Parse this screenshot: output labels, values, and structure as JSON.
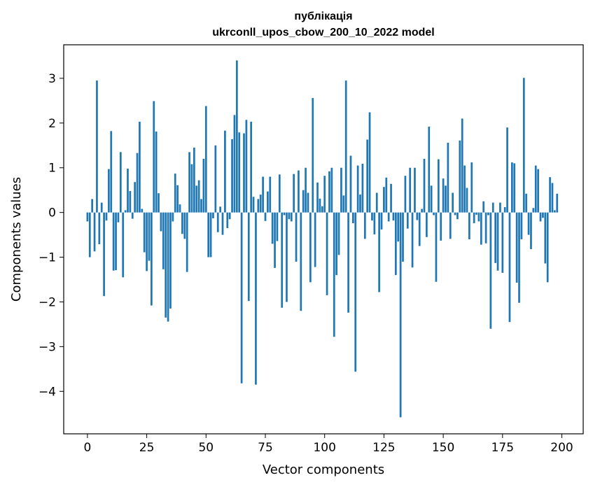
{
  "chart_data": {
    "type": "bar",
    "title_lines": [
      "публікація",
      "ukrconll_upos_cbow_200_10_2022 model"
    ],
    "xlabel": "Vector components",
    "ylabel": "Components values",
    "xlim": [
      -10,
      209
    ],
    "ylim": [
      -4.95,
      3.75
    ],
    "xticks": [
      0,
      25,
      50,
      75,
      100,
      125,
      150,
      175,
      200
    ],
    "xtick_labels": [
      "0",
      "25",
      "50",
      "75",
      "100",
      "125",
      "150",
      "175",
      "200"
    ],
    "yticks": [
      -4,
      -3,
      -2,
      -1,
      0,
      1,
      2,
      3
    ],
    "ytick_labels": [
      "−4",
      "−3",
      "−2",
      "−1",
      "0",
      "1",
      "2",
      "3"
    ],
    "grid": false,
    "bar_color": "#1f77b4",
    "values": [
      -0.2,
      -1.0,
      0.3,
      -0.87,
      2.95,
      -0.71,
      0.22,
      -1.87,
      -0.18,
      0.97,
      1.82,
      -1.3,
      -1.29,
      -0.22,
      1.35,
      -1.45,
      0.05,
      0.98,
      0.48,
      -0.14,
      0.68,
      1.33,
      2.03,
      0.08,
      -0.89,
      -1.31,
      -1.08,
      -2.08,
      2.49,
      1.81,
      0.43,
      -0.42,
      -1.27,
      -2.35,
      -2.44,
      -2.15,
      -0.2,
      0.87,
      0.61,
      0.18,
      -0.48,
      -0.59,
      -1.33,
      1.35,
      1.08,
      1.45,
      0.6,
      0.72,
      0.3,
      1.2,
      2.38,
      -1.0,
      -1.0,
      -0.13,
      1.5,
      -0.44,
      0.13,
      -0.5,
      1.83,
      -0.35,
      -0.15,
      1.64,
      2.18,
      3.4,
      1.79,
      -3.82,
      1.77,
      2.07,
      -1.98,
      2.03,
      0.35,
      -3.85,
      0.3,
      0.4,
      0.8,
      -0.19,
      0.47,
      0.8,
      -0.7,
      -1.24,
      -0.64,
      0.85,
      -2.13,
      -0.06,
      -2.0,
      -0.15,
      -0.2,
      0.86,
      -1.1,
      0.94,
      -2.2,
      0.5,
      1.0,
      0.44,
      -1.56,
      2.56,
      -1.22,
      0.67,
      0.31,
      0.14,
      0.82,
      -1.85,
      0.92,
      1.0,
      -2.78,
      -1.4,
      -0.95,
      1.0,
      0.38,
      2.95,
      -2.24,
      1.27,
      -0.24,
      -3.56,
      1.05,
      0.4,
      1.09,
      -0.59,
      1.63,
      2.24,
      -0.18,
      -0.49,
      0.44,
      -1.78,
      -0.38,
      0.57,
      0.78,
      -0.2,
      0.64,
      -0.18,
      -1.4,
      -0.65,
      -4.58,
      -1.1,
      0.82,
      -0.36,
      1.0,
      -1.23,
      1.0,
      -0.17,
      -0.75,
      0.08,
      1.2,
      -0.55,
      1.92,
      0.6,
      -0.06,
      -1.55,
      1.19,
      -0.63,
      0.76,
      0.6,
      1.56,
      -0.59,
      0.44,
      -0.06,
      -0.15,
      1.61,
      2.1,
      1.05,
      0.55,
      -0.6,
      1.12,
      -0.24,
      -0.05,
      -0.2,
      -0.72,
      0.25,
      -0.69,
      -0.06,
      -2.6,
      0.22,
      -1.13,
      -1.3,
      0.22,
      -1.35,
      0.12,
      1.9,
      -2.45,
      1.12,
      1.1,
      -1.57,
      -2.02,
      -0.6,
      3.01,
      0.42,
      -0.5,
      -0.82,
      0.1,
      1.05,
      0.97,
      -0.2,
      -0.12,
      -1.14,
      -1.56,
      0.79,
      0.66,
      0.05,
      0.42
    ]
  }
}
